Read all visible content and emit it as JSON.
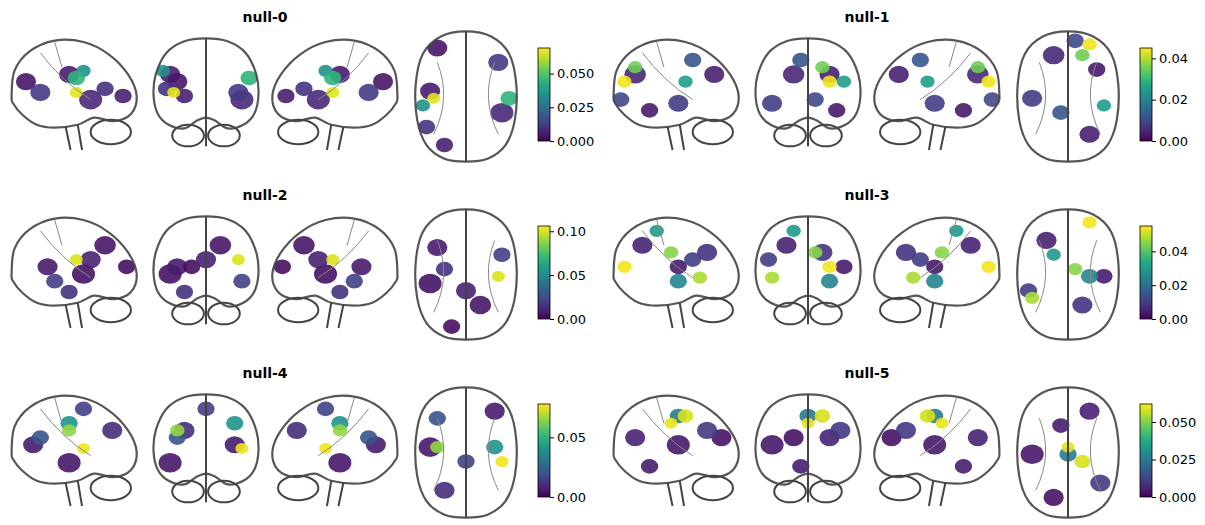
{
  "chart_data": [
    {
      "type": "glass_brain",
      "title": "null-0",
      "colorbar": {
        "range": [
          0,
          0.069
        ],
        "ticks": [
          {
            "value": 0,
            "label": "0.000"
          },
          {
            "value": 0.025,
            "label": "0.025"
          },
          {
            "value": 0.05,
            "label": "0.050"
          }
        ]
      },
      "regions": [
        {
          "x": -50,
          "y": -10,
          "z": 30,
          "size": 14,
          "value": 0.005
        },
        {
          "x": -40,
          "y": 50,
          "z": 20,
          "size": 14,
          "value": 0.004
        },
        {
          "x": -55,
          "y": -60,
          "z": 10,
          "size": 12,
          "value": 0.01
        },
        {
          "x": -30,
          "y": -85,
          "z": 0,
          "size": 12,
          "value": 0.006
        },
        {
          "x": 50,
          "y": -40,
          "z": -5,
          "size": 16,
          "value": 0.008
        },
        {
          "x": 45,
          "y": 30,
          "z": 5,
          "size": 14,
          "value": 0.012
        },
        {
          "x": -60,
          "y": -30,
          "z": 35,
          "size": 10,
          "value": 0.035
        },
        {
          "x": 60,
          "y": -20,
          "z": 25,
          "size": 12,
          "value": 0.045
        },
        {
          "x": -45,
          "y": -20,
          "z": 5,
          "size": 9,
          "value": 0.066
        }
      ]
    },
    {
      "type": "glass_brain",
      "title": "null-1",
      "colorbar": {
        "range": [
          0,
          0.045
        ],
        "ticks": [
          {
            "value": 0,
            "label": "0.00"
          },
          {
            "value": 0.02,
            "label": "0.02"
          },
          {
            "value": 0.04,
            "label": "0.04"
          }
        ]
      },
      "regions": [
        {
          "x": -20,
          "y": 40,
          "z": 30,
          "size": 15,
          "value": 0.005
        },
        {
          "x": 30,
          "y": -70,
          "z": 30,
          "size": 14,
          "value": 0.004
        },
        {
          "x": -50,
          "y": -20,
          "z": -10,
          "size": 14,
          "value": 0.008
        },
        {
          "x": 40,
          "y": 20,
          "z": -20,
          "size": 12,
          "value": 0.003
        },
        {
          "x": 10,
          "y": 60,
          "z": -5,
          "size": 12,
          "value": 0.01
        },
        {
          "x": -10,
          "y": -40,
          "z": 50,
          "size": 12,
          "value": 0.012
        },
        {
          "x": 50,
          "y": -30,
          "z": 20,
          "size": 10,
          "value": 0.025
        },
        {
          "x": 20,
          "y": 40,
          "z": 40,
          "size": 10,
          "value": 0.035
        },
        {
          "x": 30,
          "y": 55,
          "z": 20,
          "size": 10,
          "value": 0.044
        }
      ]
    },
    {
      "type": "glass_brain",
      "title": "null-2",
      "colorbar": {
        "range": [
          0,
          0.106
        ],
        "ticks": [
          {
            "value": 0,
            "label": "0.00"
          },
          {
            "value": 0.05,
            "label": "0.05"
          },
          {
            "value": 0.1,
            "label": "0.10"
          }
        ]
      },
      "regions": [
        {
          "x": -50,
          "y": -30,
          "z": 0,
          "size": 16,
          "value": 0.005
        },
        {
          "x": -40,
          "y": 20,
          "z": 10,
          "size": 14,
          "value": 0.008
        },
        {
          "x": 20,
          "y": -60,
          "z": 40,
          "size": 15,
          "value": 0.006
        },
        {
          "x": -20,
          "y": -90,
          "z": 10,
          "size": 12,
          "value": 0.004
        },
        {
          "x": 0,
          "y": -40,
          "z": 20,
          "size": 14,
          "value": 0.01
        },
        {
          "x": 50,
          "y": 10,
          "z": -10,
          "size": 12,
          "value": 0.02
        },
        {
          "x": -30,
          "y": -10,
          "z": -25,
          "size": 12,
          "value": 0.015
        },
        {
          "x": 45,
          "y": -20,
          "z": 20,
          "size": 9,
          "value": 0.1
        }
      ]
    },
    {
      "type": "glass_brain",
      "title": "null-3",
      "colorbar": {
        "range": [
          0,
          0.055
        ],
        "ticks": [
          {
            "value": 0,
            "label": "0.00"
          },
          {
            "value": 0.02,
            "label": "0.02"
          },
          {
            "value": 0.04,
            "label": "0.04"
          }
        ]
      },
      "regions": [
        {
          "x": -30,
          "y": 30,
          "z": 40,
          "size": 14,
          "value": 0.005
        },
        {
          "x": 20,
          "y": -60,
          "z": 30,
          "size": 14,
          "value": 0.008
        },
        {
          "x": 50,
          "y": -20,
          "z": 10,
          "size": 12,
          "value": 0.004
        },
        {
          "x": -55,
          "y": -40,
          "z": 20,
          "size": 12,
          "value": 0.01
        },
        {
          "x": 30,
          "y": -20,
          "z": -10,
          "size": 12,
          "value": 0.025
        },
        {
          "x": -20,
          "y": 10,
          "z": 60,
          "size": 10,
          "value": 0.03
        },
        {
          "x": 10,
          "y": -10,
          "z": 30,
          "size": 10,
          "value": 0.045
        },
        {
          "x": -50,
          "y": -50,
          "z": -5,
          "size": 10,
          "value": 0.048
        },
        {
          "x": 30,
          "y": 55,
          "z": 10,
          "size": 10,
          "value": 0.054
        }
      ]
    },
    {
      "type": "glass_brain",
      "title": "null-4",
      "colorbar": {
        "range": [
          0,
          0.078
        ],
        "ticks": [
          {
            "value": 0,
            "label": "0.00"
          },
          {
            "value": 0.05,
            "label": "0.05"
          }
        ]
      },
      "regions": [
        {
          "x": -50,
          "y": -10,
          "z": -15,
          "size": 16,
          "value": 0.005
        },
        {
          "x": 40,
          "y": 40,
          "z": 10,
          "size": 14,
          "value": 0.006
        },
        {
          "x": -30,
          "y": -70,
          "z": 30,
          "size": 14,
          "value": 0.01
        },
        {
          "x": -40,
          "y": 30,
          "z": 20,
          "size": 12,
          "value": 0.02
        },
        {
          "x": 0,
          "y": -30,
          "z": 60,
          "size": 12,
          "value": 0.015
        },
        {
          "x": 40,
          "y": -10,
          "z": 40,
          "size": 12,
          "value": 0.04
        },
        {
          "x": -40,
          "y": -10,
          "z": 30,
          "size": 10,
          "value": 0.065
        },
        {
          "x": 50,
          "y": -30,
          "z": 5,
          "size": 9,
          "value": 0.076
        }
      ]
    },
    {
      "type": "glass_brain",
      "title": "null-5",
      "colorbar": {
        "range": [
          0,
          0.062
        ],
        "ticks": [
          {
            "value": 0,
            "label": "0.000"
          },
          {
            "value": 0.025,
            "label": "0.025"
          },
          {
            "value": 0.05,
            "label": "0.050"
          }
        ]
      },
      "regions": [
        {
          "x": -50,
          "y": -20,
          "z": 10,
          "size": 16,
          "value": 0.004
        },
        {
          "x": 30,
          "y": 40,
          "z": 20,
          "size": 14,
          "value": 0.006
        },
        {
          "x": -20,
          "y": -80,
          "z": 20,
          "size": 14,
          "value": 0.003
        },
        {
          "x": 45,
          "y": -60,
          "z": 30,
          "size": 14,
          "value": 0.01
        },
        {
          "x": -10,
          "y": 20,
          "z": -20,
          "size": 12,
          "value": 0.005
        },
        {
          "x": 0,
          "y": -20,
          "z": 50,
          "size": 12,
          "value": 0.025
        },
        {
          "x": 20,
          "y": -30,
          "z": 50,
          "size": 11,
          "value": 0.058
        },
        {
          "x": 0,
          "y": -10,
          "z": 40,
          "size": 9,
          "value": 0.06
        }
      ]
    }
  ]
}
